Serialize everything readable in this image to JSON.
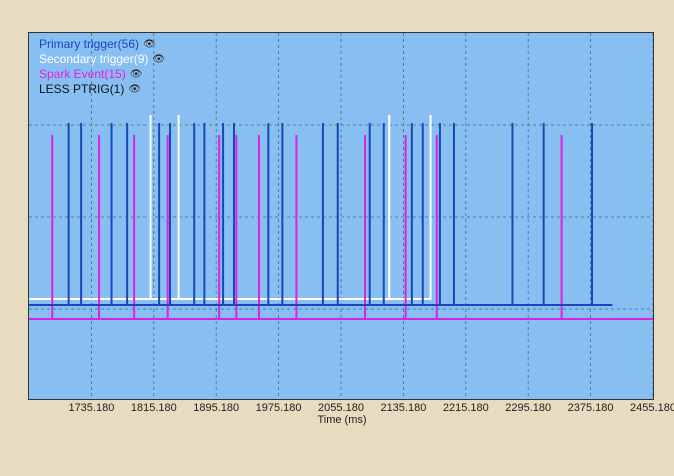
{
  "chart_data": {
    "type": "line",
    "xlabel": "Time (ms)",
    "xlim": [
      1655.18,
      2455.18
    ],
    "x_ticks": [
      1735.18,
      1815.18,
      1895.18,
      1975.18,
      2055.18,
      2135.18,
      2215.18,
      2295.18,
      2375.18,
      2455.18
    ],
    "x_tick_labels": [
      "1735.180",
      "1815.180",
      "1895.180",
      "1975.180",
      "2055.180",
      "2135.180",
      "2215.180",
      "2295.180",
      "2375.180",
      "2455.180"
    ],
    "grid": true,
    "legend_position": "top-left",
    "series": [
      {
        "name": "Primary trigger(56)",
        "color": "#1a47b8",
        "pulses_at_x": [
          1706,
          1722,
          1761,
          1781,
          1822,
          1836,
          1867,
          1880,
          1904,
          1918,
          1962,
          1980,
          2032,
          2051,
          2092,
          2110,
          2146,
          2160,
          2182,
          2200,
          2275,
          2315,
          2377
        ],
        "end_x": 2403
      },
      {
        "name": "Secondary trigger(9)",
        "color": "#ffffff",
        "pulses_at_x": [
          1811,
          1847,
          2117,
          2170
        ]
      },
      {
        "name": "Spark Event(15)",
        "color": "#e020e0",
        "pulses_at_x": [
          1685,
          1745,
          1790,
          1833,
          1899,
          1921,
          1950,
          1998,
          2086,
          2138,
          2178,
          2338
        ]
      },
      {
        "name": "LESS PTRIG(1)",
        "color": "#111111",
        "pulses_at_x": []
      }
    ]
  },
  "legend": {
    "items": [
      {
        "label": "Primary trigger(56)",
        "color": "#1a47b8"
      },
      {
        "label": "Secondary trigger(9)",
        "color": "#ffffff"
      },
      {
        "label": "Spark Event(15)",
        "color": "#e020e0"
      },
      {
        "label": "LESS PTRIG(1)",
        "color": "#111111"
      }
    ],
    "eye_icon": "eye-icon"
  },
  "colors": {
    "plot_background": "#88bff2",
    "page_background": "#e8dcc0"
  }
}
